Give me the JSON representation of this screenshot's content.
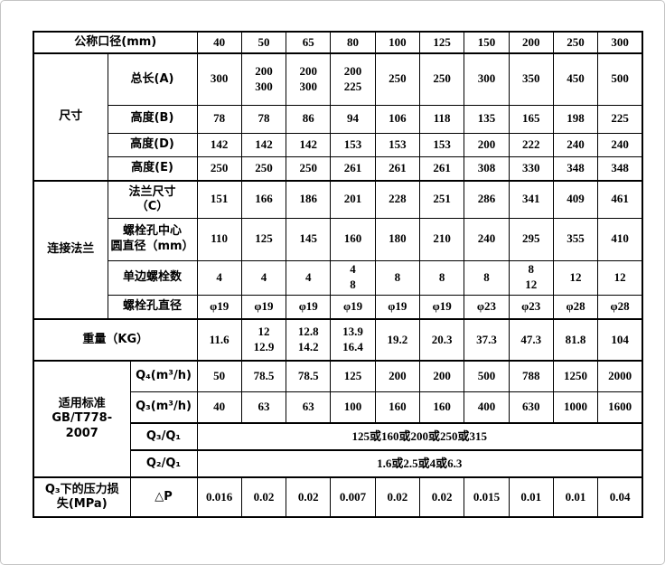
{
  "table": {
    "header": {
      "label": "公称口径(mm)",
      "values": [
        "40",
        "50",
        "65",
        "80",
        "100",
        "125",
        "150",
        "200",
        "250",
        "300"
      ]
    },
    "size_section": {
      "group_label": "尺寸",
      "rows": [
        {
          "label": "总长(A)",
          "values": [
            "300",
            "200\n300",
            "200\n300",
            "200\n225",
            "250",
            "250",
            "300",
            "350",
            "450",
            "500"
          ]
        },
        {
          "label": "高度(B)",
          "values": [
            "78",
            "78",
            "86",
            "94",
            "106",
            "118",
            "135",
            "165",
            "198",
            "225"
          ]
        },
        {
          "label": "高度(D)",
          "values": [
            "142",
            "142",
            "142",
            "153",
            "153",
            "153",
            "200",
            "222",
            "240",
            "240"
          ]
        },
        {
          "label": "高度(E)",
          "values": [
            "250",
            "250",
            "250",
            "261",
            "261",
            "261",
            "308",
            "330",
            "348",
            "348"
          ]
        }
      ]
    },
    "flange_section": {
      "group_label": "连接法兰",
      "rows": [
        {
          "label": "法兰尺寸\n（C）",
          "values": [
            "151",
            "166",
            "186",
            "201",
            "228",
            "251",
            "286",
            "341",
            "409",
            "461"
          ]
        },
        {
          "label": "螺栓孔中心\n圆直径（mm）",
          "values": [
            "110",
            "125",
            "145",
            "160",
            "180",
            "210",
            "240",
            "295",
            "355",
            "410"
          ]
        },
        {
          "label": "单边螺栓数",
          "values": [
            "4",
            "4",
            "4",
            "4\n8",
            "8",
            "8",
            "8",
            "8\n12",
            "12",
            "12"
          ]
        },
        {
          "label": "螺栓孔直径",
          "values": [
            "φ19",
            "φ19",
            "φ19",
            "φ19",
            "φ19",
            "φ19",
            "φ23",
            "φ23",
            "φ28",
            "φ28"
          ]
        }
      ]
    },
    "weight_row": {
      "label": "重量（KG）",
      "values": [
        "11.6",
        "12\n12.9",
        "12.8\n14.2",
        "13.9\n16.4",
        "19.2",
        "20.3",
        "37.3",
        "47.3",
        "81.8",
        "104"
      ]
    },
    "standard_section": {
      "group_label": "适用标准\nGB/T778-2007",
      "rows": [
        {
          "label": "Q₄(m³/h)",
          "values": [
            "50",
            "78.5",
            "78.5",
            "125",
            "200",
            "200",
            "500",
            "788",
            "1250",
            "2000"
          ]
        },
        {
          "label": "Q₃(m³/h)",
          "values": [
            "40",
            "63",
            "63",
            "100",
            "160",
            "160",
            "400",
            "630",
            "1000",
            "1600"
          ]
        }
      ],
      "span_rows": [
        {
          "label": "Q₃/Q₁",
          "value": "125或160或200或250或315"
        },
        {
          "label": "Q₂/Q₁",
          "value": "1.6或2.5或4或6.3"
        }
      ]
    },
    "pressure_row": {
      "group_label": "Q₃下的压力损\n失(MPa)",
      "label": "△P",
      "values": [
        "0.016",
        "0.02",
        "0.02",
        "0.007",
        "0.02",
        "0.02",
        "0.015",
        "0.01",
        "0.01",
        "0.04"
      ]
    }
  }
}
